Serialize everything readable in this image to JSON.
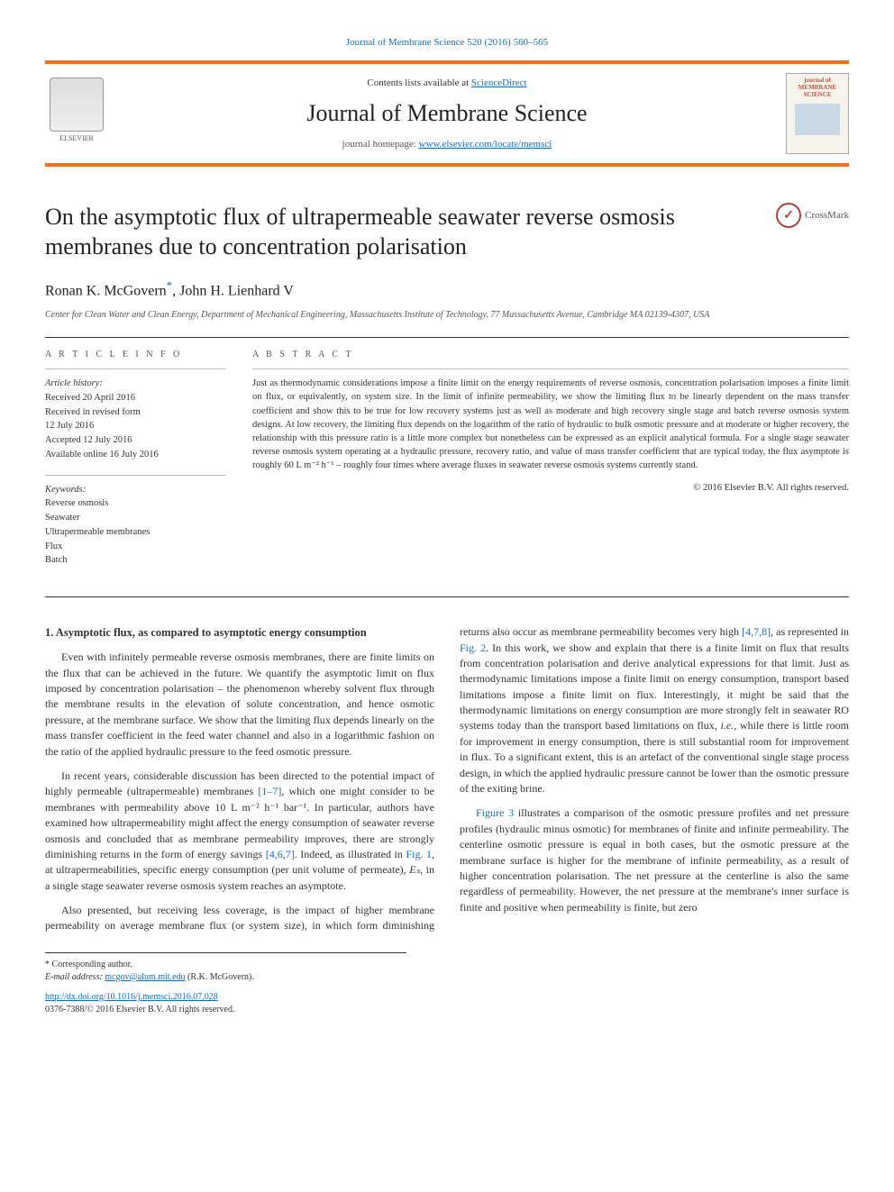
{
  "topLink": "Journal of Membrane Science 520 (2016) 560–565",
  "header": {
    "contentsPrefix": "Contents lists available at ",
    "contentsLink": "ScienceDirect",
    "journalName": "Journal of Membrane Science",
    "homepagePrefix": "journal homepage: ",
    "homepageLink": "www.elsevier.com/locate/memsci",
    "elsevierLabel": "ELSEVIER",
    "coverTitle": "journal of MEMBRANE SCIENCE"
  },
  "crossmark": "CrossMark",
  "title": "On the asymptotic flux of ultrapermeable seawater reverse osmosis membranes due to concentration polarisation",
  "authors": "Ronan K. McGovern",
  "authorSup": "*",
  "authors2": ", John H. Lienhard V",
  "affiliation": "Center for Clean Water and Clean Energy, Department of Mechanical Engineering, Massachusetts Institute of Technology, 77 Massachusetts Avenue, Cambridge MA 02139-4307, USA",
  "info": {
    "header": "A R T I C L E  I N F O",
    "historyLabel": "Article history:",
    "received": "Received 20 April 2016",
    "revised1": "Received in revised form",
    "revised2": "12 July 2016",
    "accepted": "Accepted 12 July 2016",
    "online": "Available online 16 July 2016",
    "keywordsLabel": "Keywords:",
    "kw1": "Reverse osmosis",
    "kw2": "Seawater",
    "kw3": "Ultrapermeable membranes",
    "kw4": "Flux",
    "kw5": "Batch"
  },
  "abstract": {
    "header": "A B S T R A C T",
    "text": "Just as thermodynamic considerations impose a finite limit on the energy requirements of reverse osmosis, concentration polarisation imposes a finite limit on flux, or equivalently, on system size. In the limit of infinite permeability, we show the limiting flux to be linearly dependent on the mass transfer coefficient and show this to be true for low recovery systems just as well as moderate and high recovery single stage and batch reverse osmosis system designs. At low recovery, the limiting flux depends on the logarithm of the ratio of hydraulic to bulk osmotic pressure and at moderate or higher recovery, the relationship with this pressure ratio is a little more complex but nonetheless can be expressed as an explicit analytical formula. For a single stage seawater reverse osmosis system operating at a hydraulic pressure, recovery ratio, and value of mass transfer coefficient that are typical today, the flux asymptote is roughly 60 L m⁻² h⁻¹ – roughly four times where average fluxes in seawater reverse osmosis systems currently stand.",
    "copyright": "© 2016 Elsevier B.V. All rights reserved."
  },
  "section1": {
    "heading": "1.  Asymptotic flux, as compared to asymptotic energy consumption",
    "p1a": "Even with infinitely permeable reverse osmosis membranes, there are finite limits on the flux that can be achieved in the future. We quantify the asymptotic limit on flux imposed by concentration polarisation – the phenomenon whereby solvent flux through the membrane results in the elevation of solute concentration, and hence osmotic pressure, at the membrane surface. We show that the limiting flux depends linearly on the mass transfer coefficient in the feed water channel and also in a logarithmic fashion on the ratio of the applied hydraulic pressure to the feed osmotic pressure.",
    "p2a": "In recent years, considerable discussion has been directed to the potential impact of highly permeable (ultrapermeable) membranes ",
    "p2ref1": "[1–7]",
    "p2b": ", which one might consider to be membranes with permeability above 10 L m⁻² h⁻¹ bar⁻¹. In particular, authors have examined how ultrapermeability might affect the energy consumption of seawater reverse osmosis and concluded that as membrane permeability improves, there are strongly diminishing returns in the form of energy savings ",
    "p2ref2": "[4,6,7]",
    "p2c": ". Indeed, as illustrated in ",
    "p2fig": "Fig. 1",
    "p2d": ", at ultrapermeabilities, specific energy consumption (per unit volume of permeate), ",
    "p2var": "Eₛ",
    "p2e": ", in a single stage seawater reverse ",
    "p2f": "osmosis system reaches an asymptote.",
    "p3a": "Also presented, but receiving less coverage, is the impact of higher membrane permeability on average membrane flux (or system size), in which form diminishing returns also occur as membrane permeability becomes very high ",
    "p3ref1": "[4,7,8]",
    "p3b": ", as represented in ",
    "p3fig": "Fig. 2",
    "p3c": ". In this work, we show and explain that there is a finite limit on flux that results from concentration polarisation and derive analytical expressions for that limit. Just as thermodynamic limitations impose a finite limit on energy consumption, transport based limitations impose a finite limit on flux. Interestingly, it might be said that the thermodynamic limitations on energy consumption are more strongly felt in seawater RO systems today than the transport based limitations on flux, ",
    "p3ie": "i.e.",
    "p3d": ", while there is little room for improvement in energy consumption, there is still substantial room for improvement in flux. To a significant extent, this is an artefact of the conventional single stage process design, in which the applied hydraulic pressure cannot be lower than the osmotic pressure of the exiting brine.",
    "p4fig": "Figure 3",
    "p4a": " illustrates a comparison of the osmotic pressure profiles and net pressure profiles (hydraulic minus osmotic) for membranes of finite and infinite permeability. The centerline osmotic pressure is equal in both cases, but the osmotic pressure at the membrane surface is higher for the membrane of infinite permeability, as a result of higher concentration polarisation. The net pressure at the centerline is also the same regardless of permeability. However, the net pressure at the membrane's inner surface is finite and positive when permeability is finite, but zero"
  },
  "footer": {
    "corrLabel": "* Corresponding author.",
    "emailLabel": "E-mail address: ",
    "email": "mcgov@alum.mit.edu",
    "emailSuffix": " (R.K. McGovern).",
    "doi": "http://dx.doi.org/10.1016/j.memsci.2016.07.028",
    "issn": "0376-7388/© 2016 Elsevier B.V. All rights reserved."
  }
}
